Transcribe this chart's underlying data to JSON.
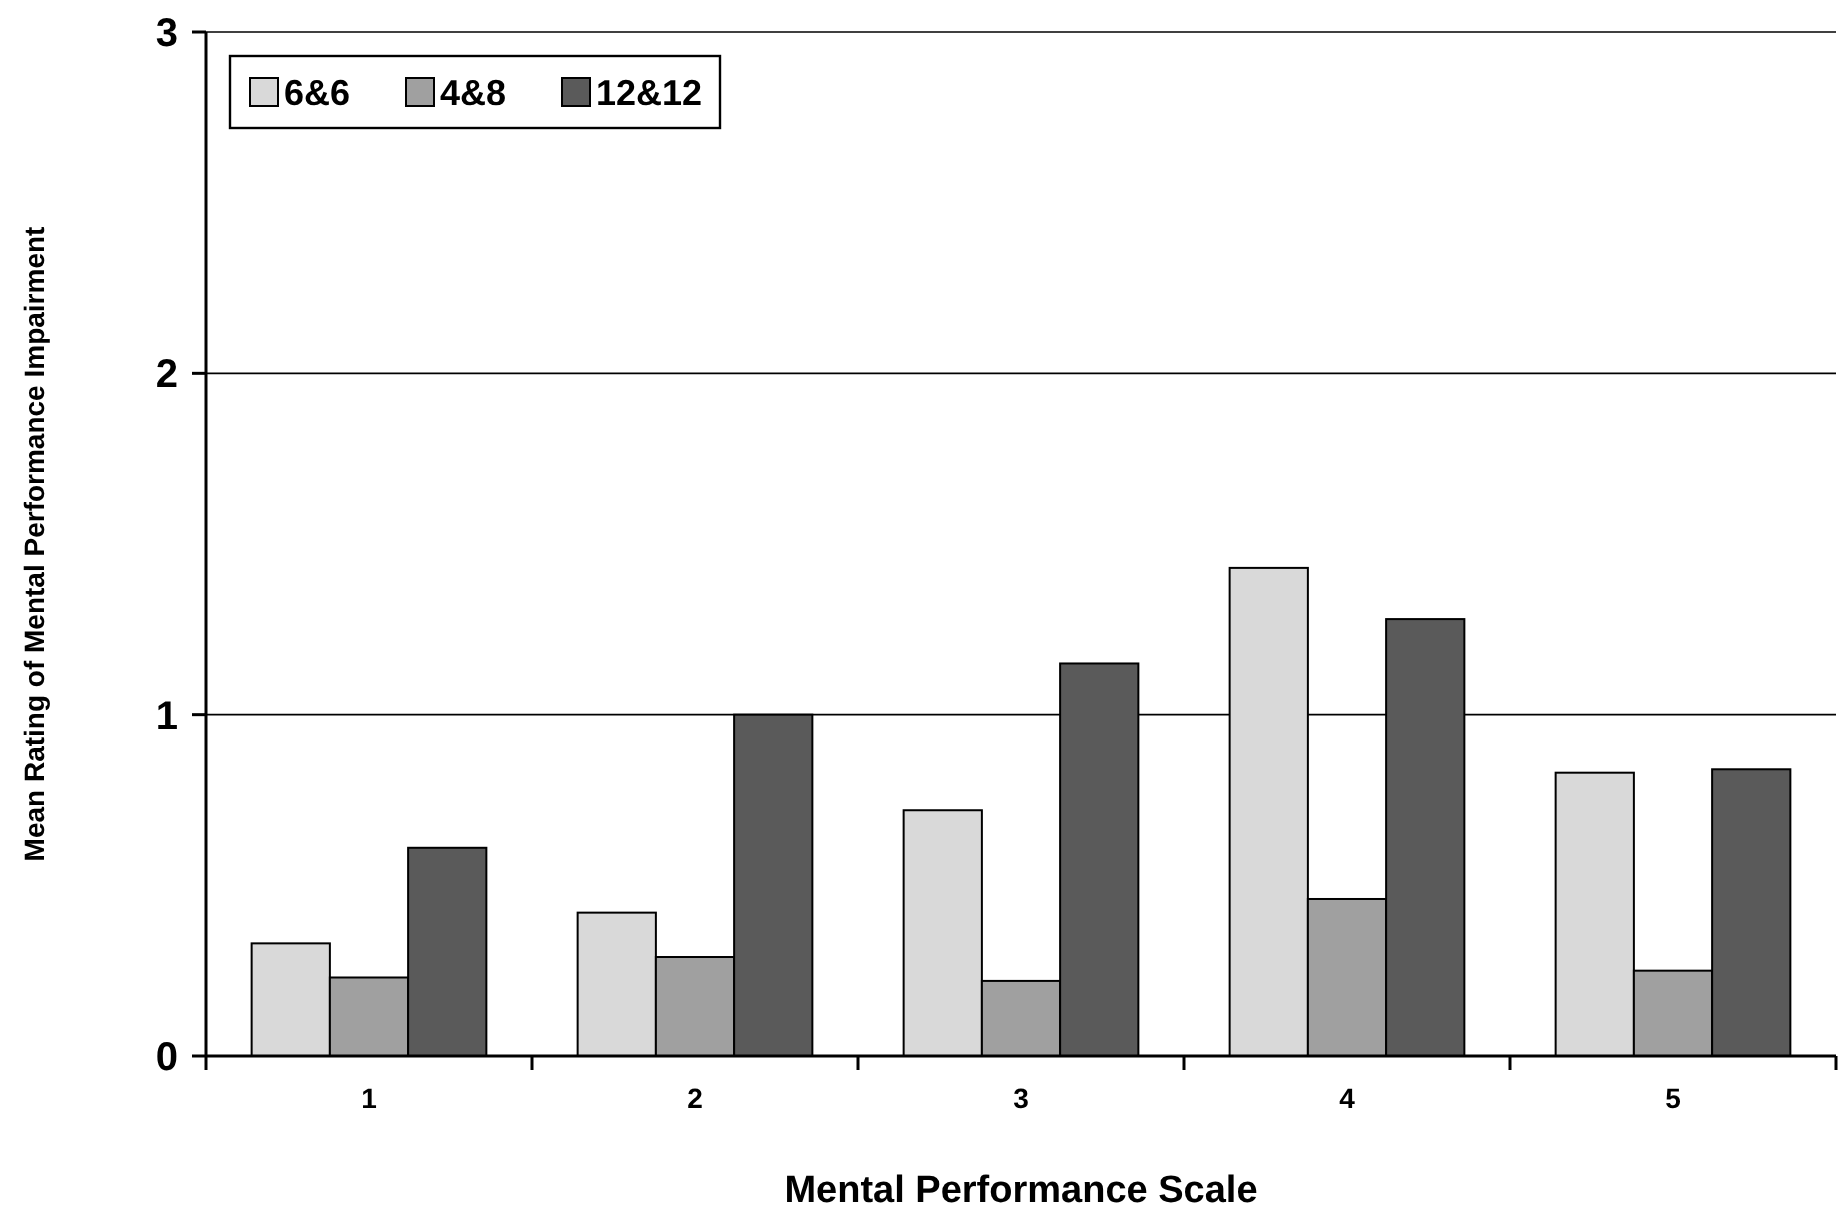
{
  "chart_data": {
    "type": "bar",
    "xlabel": "Mental Performance Scale",
    "ylabel": "Mean Rating of Mental Performance Impairment",
    "categories": [
      "1",
      "2",
      "3",
      "4",
      "5"
    ],
    "series": [
      {
        "name": "6&6",
        "color": "#d9d9d9",
        "values": [
          0.33,
          0.42,
          0.72,
          1.43,
          0.83
        ]
      },
      {
        "name": "4&8",
        "color": "#a0a0a0",
        "values": [
          0.23,
          0.29,
          0.22,
          0.46,
          0.25
        ]
      },
      {
        "name": "12&12",
        "color": "#5a5a5a",
        "values": [
          0.61,
          1.0,
          1.15,
          1.28,
          0.84
        ]
      }
    ],
    "ylim": [
      0,
      3
    ],
    "yticks": [
      0,
      1,
      2,
      3
    ],
    "grid": "y",
    "legend": "top left"
  }
}
